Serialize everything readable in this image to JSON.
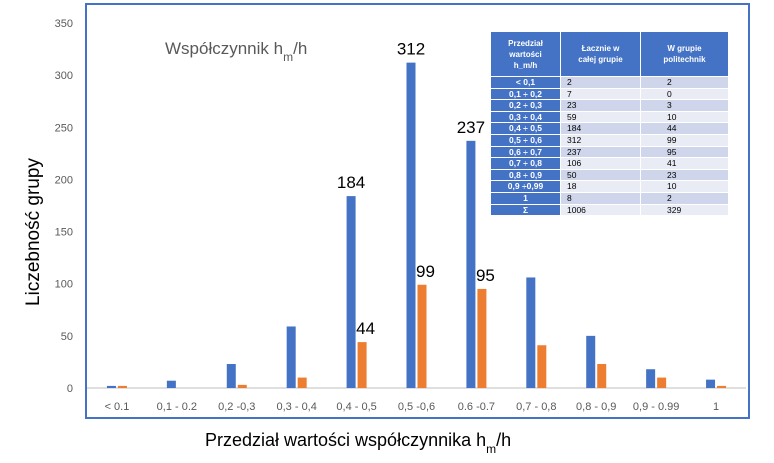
{
  "chart_data": {
    "type": "bar",
    "title": "Współczynnik h_m/h",
    "title_parts": {
      "main": "Współczynnik h",
      "sub": "m",
      "suffix": "/h"
    },
    "xlabel": "Przedział wartości współczynnika h_m/h",
    "xlabel_parts": {
      "main": "Przedział wartości współczynnika h",
      "sub": "m",
      "suffix": "/h"
    },
    "ylabel": "Liczebność grupy",
    "ylim": [
      0,
      350
    ],
    "yticks": [
      0,
      50,
      100,
      150,
      200,
      250,
      300,
      350
    ],
    "grid": false,
    "legend": "none",
    "categories": [
      "< 0.1",
      "0,1 - 0.2",
      "0,2 -0,3",
      "0,3 - 0,4",
      "0,4 - 0,5",
      "0,5 -0,6",
      "0.6 -0.7",
      "0,7 - 0,8",
      "0,8 - 0,9",
      "0,9 - 0.99",
      "1"
    ],
    "series": [
      {
        "values": [
          2,
          7,
          23,
          59,
          184,
          312,
          237,
          106,
          50,
          18,
          8
        ],
        "color": "#4472c4"
      },
      {
        "values": [
          2,
          0,
          3,
          10,
          44,
          99,
          95,
          41,
          23,
          10,
          2
        ],
        "color": "#ed7d31"
      }
    ],
    "data_labels": [
      {
        "series": 0,
        "index": 4,
        "text": "184"
      },
      {
        "series": 0,
        "index": 5,
        "text": "312"
      },
      {
        "series": 0,
        "index": 6,
        "text": "237"
      },
      {
        "series": 1,
        "index": 4,
        "text": "44"
      },
      {
        "series": 1,
        "index": 5,
        "text": "99"
      },
      {
        "series": 1,
        "index": 6,
        "text": "95"
      }
    ]
  },
  "table": {
    "headers": [
      "Przedział wartości h_m/h",
      "Łacznie w całej grupie",
      "W grupie politechnik"
    ],
    "header_lines": [
      [
        "Przedział",
        "wartości",
        "h_m/h"
      ],
      [
        "Łacznie w",
        "całej grupie"
      ],
      [
        "W grupie",
        "politechnik"
      ]
    ],
    "rows": [
      [
        "< 0,1",
        "2",
        "2"
      ],
      [
        "0,1 ÷ 0,2",
        "7",
        "0"
      ],
      [
        "0,2 ÷ 0,3",
        "23",
        "3"
      ],
      [
        "0,3 ÷ 0,4",
        "59",
        "10"
      ],
      [
        "0,4 ÷ 0,5",
        "184",
        "44"
      ],
      [
        "0,5 ÷ 0,6",
        "312",
        "99"
      ],
      [
        "0,6 ÷ 0,7",
        "237",
        "95"
      ],
      [
        "0,7 ÷ 0,8",
        "106",
        "41"
      ],
      [
        "0,8 ÷ 0,9",
        "50",
        "23"
      ],
      [
        "0,9 ÷0,99",
        "18",
        "10"
      ],
      [
        "1",
        "8",
        "2"
      ],
      [
        "Σ",
        "1006",
        "329"
      ]
    ]
  },
  "colors": {
    "frame": "#4472c4",
    "series_a": "#4472c4",
    "series_b": "#ed7d31",
    "axis_text": "#595959"
  }
}
